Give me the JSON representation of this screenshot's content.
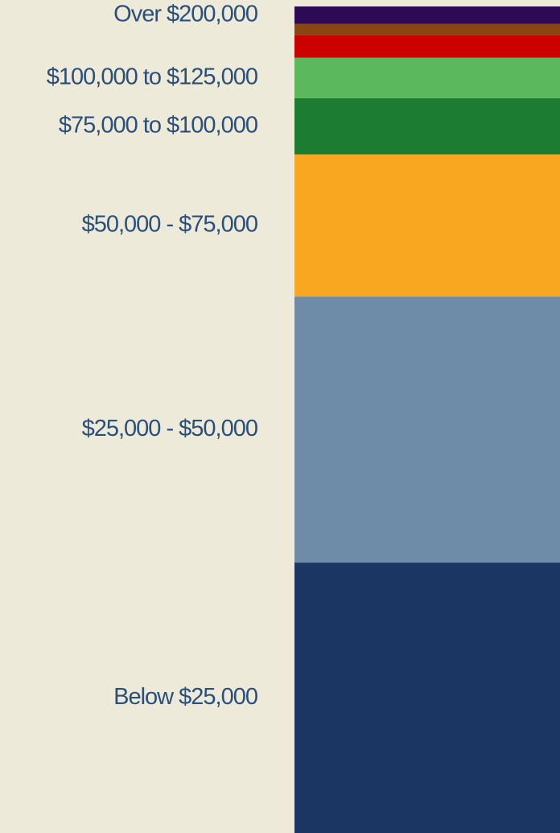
{
  "chart_data": {
    "type": "stacked-column",
    "categories": [
      "Below $25,000",
      "$25,000 - $50,000",
      "$50,000 - $75,000",
      "$75,000 to $100,000",
      "$100,000 to $125,000",
      null,
      null,
      "Over $200,000"
    ],
    "values": [
      32.7,
      32.2,
      17.2,
      6.8,
      4.9,
      2.7,
      1.4,
      2.1
    ],
    "colors": [
      "#1c3664",
      "#6e8ba8",
      "#f9a620",
      "#1c7c31",
      "#5cb85c",
      "#cc0000",
      "#8b4513",
      "#2d0a55"
    ],
    "ylim": [
      0,
      100
    ]
  }
}
